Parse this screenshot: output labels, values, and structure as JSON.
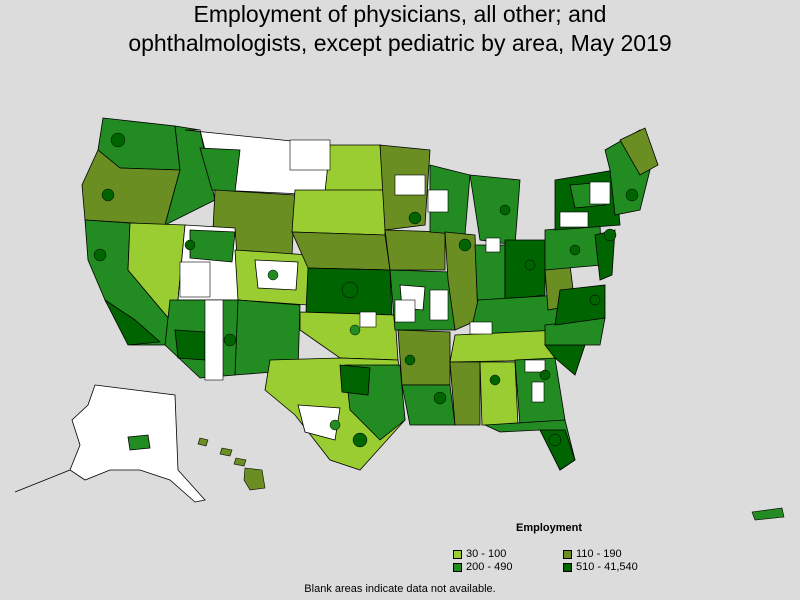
{
  "title_line1": "Employment of physicians, all other; and",
  "title_line2": "ophthalmologists, except pediatric by area, May 2019",
  "legend": {
    "title": "Employment",
    "items": [
      {
        "label": "30 - 100",
        "color": "#9acd32"
      },
      {
        "label": "110 - 190",
        "color": "#6b8e23"
      },
      {
        "label": "200 - 490",
        "color": "#228b22"
      },
      {
        "label": "510 - 41,540",
        "color": "#006400"
      }
    ]
  },
  "note": "Blank areas indicate data not available.",
  "colors": {
    "background": "#dcdcdc",
    "no_data": "#ffffff",
    "border": "#000000"
  }
}
